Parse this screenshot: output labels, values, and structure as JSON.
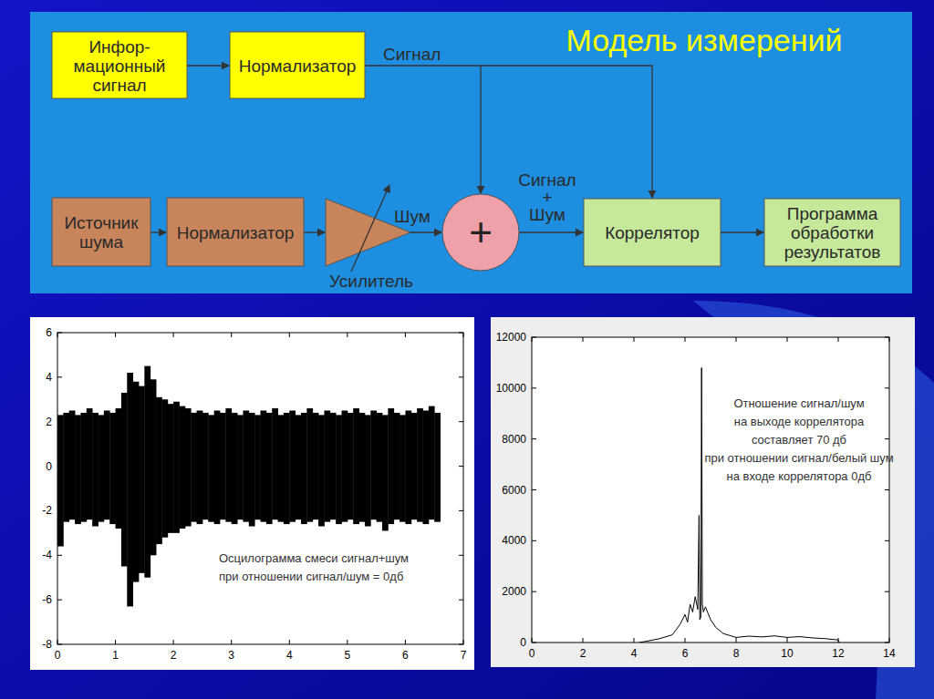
{
  "diagram": {
    "title": "Модель измерений",
    "nodes": [
      {
        "lines": [
          "Инфор-",
          "мационный",
          "сигнал"
        ]
      },
      {
        "lines": [
          "Нормализатор"
        ]
      },
      {
        "lines": [
          "Источник",
          "шума"
        ]
      },
      {
        "lines": [
          "Нормализатор"
        ]
      },
      {
        "lines": [
          "Коррелятор"
        ]
      },
      {
        "lines": [
          "Программа",
          "обработки",
          "результатов"
        ]
      }
    ],
    "signal_label": "Сигнал",
    "noise_label": "Шум",
    "sum_label": [
      "Сигнал",
      "+",
      "Шум"
    ],
    "adder_label": "+",
    "amplifier_label": "Усилитель"
  },
  "chart_data": [
    {
      "type": "area",
      "annotation": [
        "Осцилограмма смеси сигнал+шум",
        "при отношении сигнал/шум = 0дб"
      ],
      "x": [
        0,
        0.1,
        0.2,
        0.3,
        0.4,
        0.5,
        0.6,
        0.7,
        0.8,
        0.9,
        1.0,
        1.1,
        1.2,
        1.3,
        1.4,
        1.5,
        1.6,
        1.7,
        1.8,
        1.9,
        2.0,
        2.1,
        2.2,
        2.3,
        2.4,
        2.5,
        2.6,
        2.7,
        2.8,
        2.9,
        3.0,
        3.1,
        3.2,
        3.3,
        3.4,
        3.5,
        3.6,
        3.7,
        3.8,
        3.9,
        4.0,
        4.1,
        4.2,
        4.3,
        4.4,
        4.5,
        4.6,
        4.7,
        4.8,
        4.9,
        5.0,
        5.1,
        5.2,
        5.3,
        5.4,
        5.5,
        5.6,
        5.7,
        5.8,
        5.9,
        6.0,
        6.1,
        6.2,
        6.3,
        6.4,
        6.5
      ],
      "series": [
        {
          "color": "#000000",
          "values": [
            2.3,
            2.4,
            2.5,
            2.3,
            2.4,
            2.6,
            2.4,
            2.3,
            2.5,
            2.4,
            2.6,
            3.3,
            4.2,
            3.8,
            3.6,
            4.5,
            3.9,
            3.1,
            3.0,
            2.8,
            2.9,
            2.7,
            2.6,
            2.4,
            2.5,
            2.4,
            2.3,
            2.5,
            2.4,
            2.6,
            2.4,
            2.3,
            2.5,
            2.4,
            2.3,
            2.5,
            2.4,
            2.6,
            2.3,
            2.4,
            2.5,
            2.3,
            2.4,
            2.6,
            2.4,
            2.3,
            2.5,
            2.4,
            2.3,
            2.5,
            2.4,
            2.6,
            2.4,
            2.3,
            2.5,
            2.4,
            2.3,
            2.6,
            2.4,
            2.3,
            2.5,
            2.4,
            2.6,
            2.5,
            2.7,
            2.4
          ]
        },
        {
          "color": "#000000",
          "values": [
            -3.6,
            -2.5,
            -2.4,
            -2.6,
            -2.5,
            -2.4,
            -2.7,
            -2.5,
            -2.4,
            -2.6,
            -2.8,
            -4.5,
            -6.3,
            -5.2,
            -4.8,
            -5.0,
            -4.0,
            -3.5,
            -3.2,
            -3.0,
            -3.0,
            -2.8,
            -2.7,
            -2.5,
            -2.6,
            -2.4,
            -2.5,
            -2.6,
            -2.4,
            -2.5,
            -2.6,
            -2.4,
            -2.5,
            -2.7,
            -2.4,
            -2.5,
            -2.6,
            -2.4,
            -2.5,
            -2.6,
            -2.5,
            -2.4,
            -2.6,
            -2.5,
            -2.4,
            -2.7,
            -2.5,
            -2.4,
            -2.6,
            -2.5,
            -2.4,
            -2.6,
            -2.5,
            -2.7,
            -2.4,
            -2.5,
            -2.9,
            -2.6,
            -2.4,
            -2.5,
            -2.6,
            -2.4,
            -2.5,
            -2.6,
            -2.4,
            -2.5
          ]
        }
      ],
      "xlim": [
        0,
        7
      ],
      "xticks": [
        0,
        1,
        2,
        3,
        4,
        5,
        6,
        7
      ],
      "ylim": [
        -8,
        6
      ],
      "yticks": [
        -8,
        -6,
        -4,
        -2,
        0,
        2,
        4,
        6
      ]
    },
    {
      "type": "line",
      "annotation": [
        "Отношение сигнал/шум",
        "на выходе коррелятора",
        "составляет 70 дб",
        "при отношении сигнал/белый шум",
        "на входе коррелятора  0дб"
      ],
      "x": [
        4.2,
        4.5,
        5.0,
        5.5,
        5.8,
        6.0,
        6.1,
        6.2,
        6.3,
        6.4,
        6.5,
        6.55,
        6.58,
        6.62,
        6.65,
        6.68,
        6.72,
        6.8,
        7.0,
        7.2,
        7.5,
        8.0,
        8.5,
        9.0,
        9.5,
        10.0,
        10.5,
        11.0,
        11.5,
        12.0,
        12.05
      ],
      "series": [
        {
          "color": "#000000",
          "values": [
            0,
            50,
            150,
            300,
            700,
            1100,
            800,
            1500,
            1200,
            1800,
            1300,
            5000,
            900,
            1000,
            10800,
            1500,
            1200,
            1400,
            900,
            600,
            350,
            200,
            250,
            220,
            260,
            200,
            230,
            180,
            150,
            100,
            0
          ]
        }
      ],
      "xlim": [
        0,
        14
      ],
      "xticks": [
        0,
        2,
        4,
        6,
        8,
        10,
        12,
        14
      ],
      "ylim": [
        0,
        12000
      ],
      "yticks": [
        0,
        2000,
        4000,
        6000,
        8000,
        10000,
        12000
      ]
    }
  ]
}
